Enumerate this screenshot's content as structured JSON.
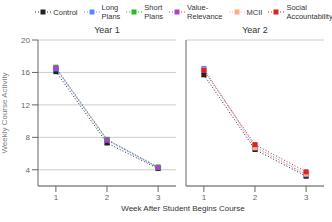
{
  "chart_data": [
    {
      "type": "line",
      "title": "Year 1",
      "ylabel": "Weekly Course Activity",
      "xlabel": "Week After Student Begins Course",
      "legend": "top",
      "grid": true,
      "x": [
        1,
        2,
        3
      ],
      "xlim": [
        0.65,
        3.35
      ],
      "xticks": [
        1,
        2,
        3
      ],
      "ylim": [
        2,
        20
      ],
      "yticks": [
        4,
        8,
        12,
        16,
        20
      ],
      "series": [
        {
          "name": "Control",
          "color": "#222222",
          "marker": "square",
          "line_style": "dotted",
          "values": [
            16.1,
            7.3,
            4.15
          ],
          "band": 0.15
        },
        {
          "name": "Long\nPlans",
          "color": "#5588ff",
          "marker": "square",
          "line_style": "dotted",
          "values": [
            16.45,
            7.7,
            4.3
          ],
          "band": 0.12
        },
        {
          "name": "Short\nPlans",
          "color": "#22bb22",
          "marker": "square",
          "line_style": "dotted",
          "values": [
            16.65,
            7.75,
            4.35
          ],
          "band": 0.12
        },
        {
          "name": "Value-\nRelevance",
          "color": "#aa44cc",
          "marker": "square",
          "line_style": "dotted",
          "values": [
            16.55,
            7.65,
            4.25
          ],
          "band": 0.12
        }
      ]
    },
    {
      "type": "line",
      "title": "Year 2",
      "grid": true,
      "tick_labels": "x",
      "x": [
        1,
        2,
        3
      ],
      "xlim": [
        0.65,
        3.35
      ],
      "xticks": [
        1,
        2,
        3
      ],
      "ylim": [
        2,
        20
      ],
      "yticks": [
        4,
        8,
        12,
        16,
        20
      ],
      "series": [
        {
          "name": "Control",
          "color": "#222222",
          "marker": "square",
          "line_style": "dotted",
          "values": [
            15.7,
            6.5,
            3.2
          ],
          "band": 0.15
        },
        {
          "name": "Long\nPlans",
          "color": "#5588ff",
          "marker": "square",
          "line_style": "dotted",
          "values": [
            16.5,
            6.85,
            3.4
          ],
          "band": 0.12
        },
        {
          "name": "MCII",
          "color": "#ffaa88",
          "marker": "square",
          "line_style": "dotted",
          "values": [
            16.3,
            6.7,
            3.5
          ],
          "band": 0.12
        },
        {
          "name": "Social\nAccountability",
          "color": "#dd2222",
          "marker": "square",
          "line_style": "dotted",
          "values": [
            16.25,
            7.1,
            3.75
          ],
          "band": 0.12
        }
      ]
    }
  ]
}
